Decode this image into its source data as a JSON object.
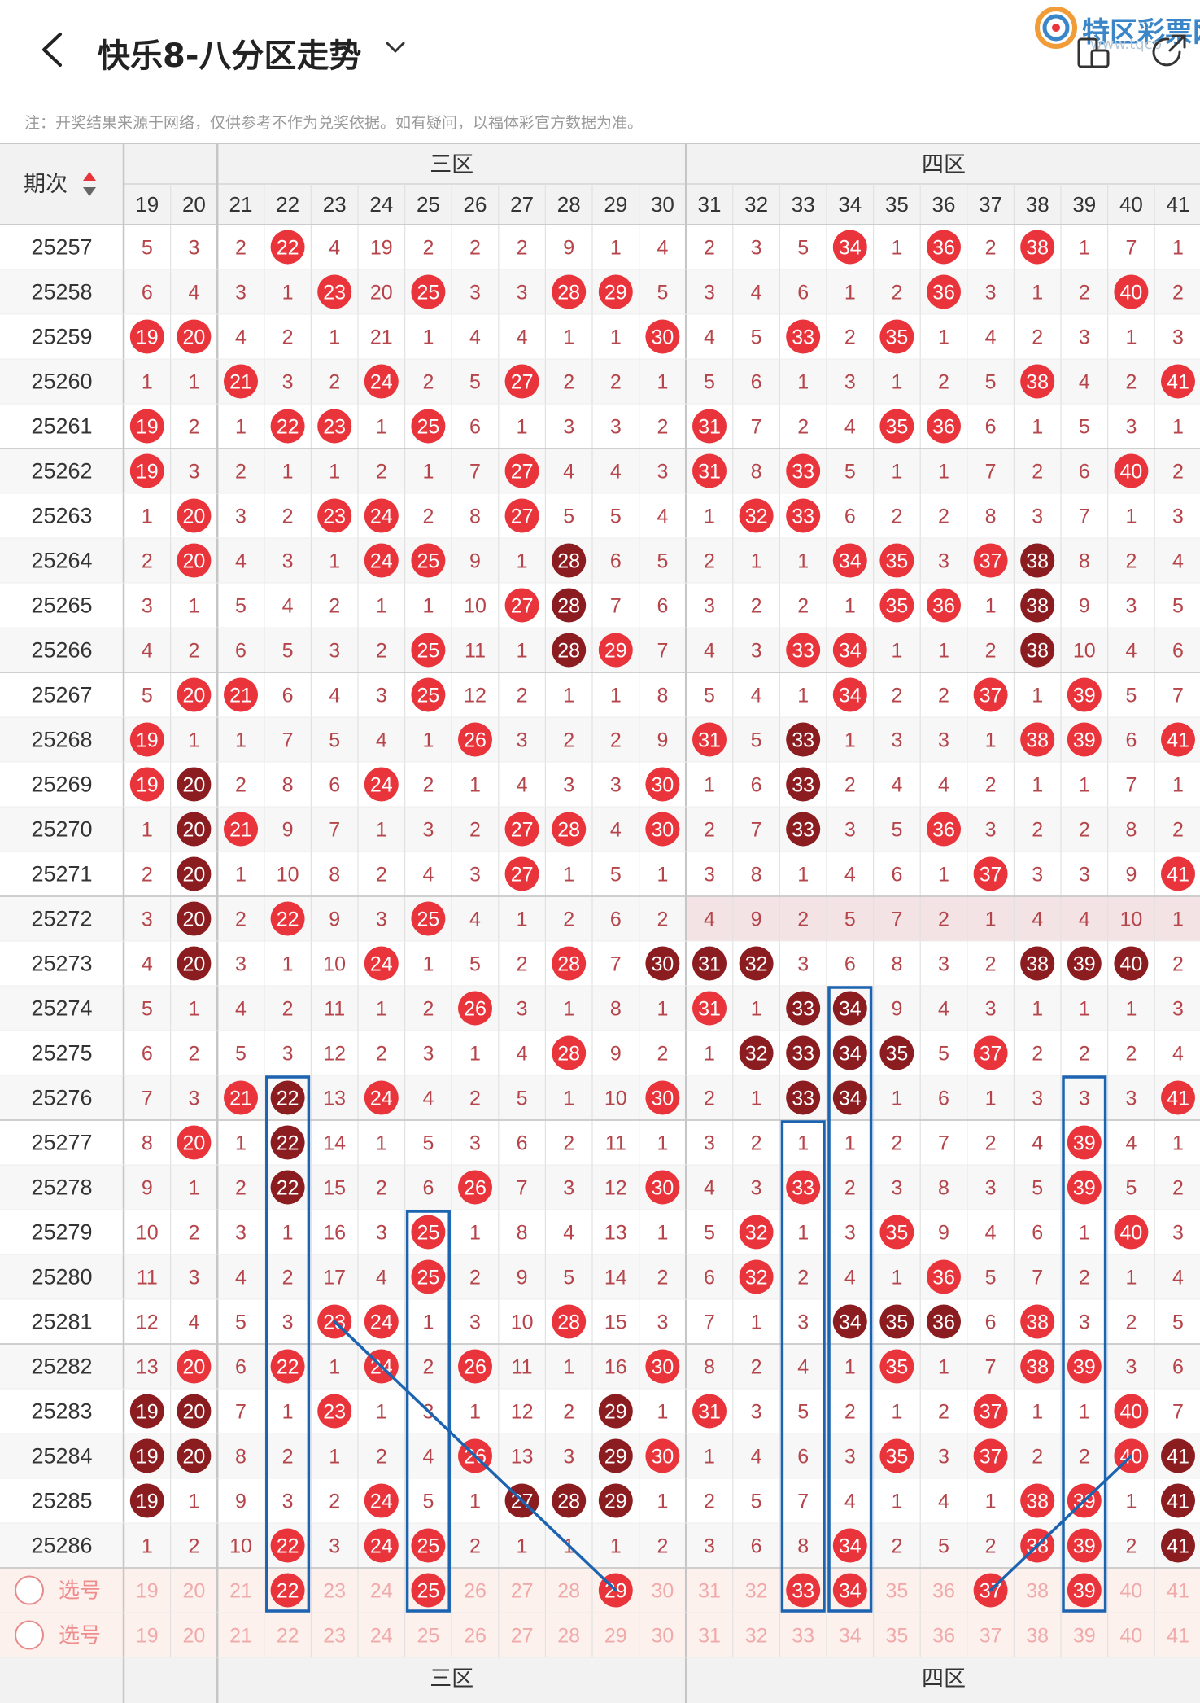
{
  "header": {
    "back_icon": "chevron-left-icon",
    "title": "快乐8-八分区走势",
    "dropdown_icon": "chevron-down-icon",
    "logo_text": "特区彩票网",
    "watermark": "www.tqcp",
    "toggle_icon": "device-toggle-icon",
    "share_icon": "share-icon"
  },
  "note": "注：开奖结果来源于网络，仅供参考不作为兑奖依据。如有疑问，以福体彩官方数据为准。",
  "table": {
    "period_header": "期次",
    "sort_icon": "sort-icon",
    "zone_labels": [
      "三区",
      "四区"
    ],
    "columns": [
      19,
      20,
      21,
      22,
      23,
      24,
      25,
      26,
      27,
      28,
      29,
      30,
      31,
      32,
      33,
      34,
      35,
      36,
      37,
      38,
      39,
      40,
      41
    ],
    "pick_label": "选号",
    "pick_rows": [
      {
        "label": "选号",
        "selected": [
          22,
          25,
          29,
          33,
          34,
          37,
          39
        ]
      },
      {
        "label": "选号",
        "selected": []
      }
    ],
    "colors": {
      "hit": "#e8343a",
      "hit_dark": "#8b1c20",
      "miss": "#b5454a",
      "pick_text": "#f0aaaa",
      "pick_bg": "#fdf1ee",
      "line": "#1c63b0"
    },
    "rows": [
      {
        "period": "25257",
        "cells": [
          "5",
          "3",
          "2",
          "22",
          "4",
          "19",
          "2",
          "2",
          "2",
          "9",
          "1",
          "4",
          "2",
          "3",
          "5",
          "34",
          "1",
          "36",
          "2",
          "38",
          "1",
          "7",
          "1"
        ]
      },
      {
        "period": "25258",
        "cells": [
          "6",
          "4",
          "3",
          "1",
          "23",
          "20",
          "25",
          "3",
          "3",
          "28",
          "29",
          "5",
          "3",
          "4",
          "6",
          "1",
          "2",
          "36",
          "3",
          "1",
          "2",
          "40",
          "2"
        ]
      },
      {
        "period": "25259",
        "cells": [
          "19",
          "20",
          "4",
          "2",
          "1",
          "21",
          "1",
          "4",
          "4",
          "1",
          "1",
          "30",
          "4",
          "5",
          "33",
          "2",
          "35",
          "1",
          "4",
          "2",
          "3",
          "1",
          "3"
        ]
      },
      {
        "period": "25260",
        "cells": [
          "1",
          "1",
          "21",
          "3",
          "2",
          "24",
          "2",
          "5",
          "27",
          "2",
          "2",
          "1",
          "5",
          "6",
          "1",
          "3",
          "1",
          "2",
          "5",
          "38",
          "4",
          "2",
          "41"
        ]
      },
      {
        "period": "25261",
        "cells": [
          "19",
          "2",
          "1",
          "22",
          "23",
          "1",
          "25",
          "6",
          "1",
          "3",
          "3",
          "2",
          "31",
          "7",
          "2",
          "4",
          "35",
          "36",
          "6",
          "1",
          "5",
          "3",
          "1"
        ]
      },
      {
        "period": "25262",
        "cells": [
          "19",
          "3",
          "2",
          "1",
          "1",
          "2",
          "1",
          "7",
          "27",
          "4",
          "4",
          "3",
          "31",
          "8",
          "33",
          "5",
          "1",
          "1",
          "7",
          "2",
          "6",
          "40",
          "2"
        ]
      },
      {
        "period": "25263",
        "cells": [
          "1",
          "20",
          "3",
          "2",
          "23",
          "24",
          "2",
          "8",
          "27",
          "5",
          "5",
          "4",
          "1",
          "32",
          "33",
          "6",
          "2",
          "2",
          "8",
          "3",
          "7",
          "1",
          "3"
        ]
      },
      {
        "period": "25264",
        "cells": [
          "2",
          "20",
          "4",
          "3",
          "1",
          "24",
          "25",
          "9",
          "1",
          "28",
          "6",
          "5",
          "2",
          "1",
          "1",
          "34",
          "35",
          "3",
          "37",
          "38",
          "8",
          "2",
          "4"
        ],
        "dark": [
          28,
          38
        ]
      },
      {
        "period": "25265",
        "cells": [
          "3",
          "1",
          "5",
          "4",
          "2",
          "1",
          "1",
          "10",
          "27",
          "28",
          "7",
          "6",
          "3",
          "2",
          "2",
          "1",
          "35",
          "36",
          "1",
          "38",
          "9",
          "3",
          "5"
        ],
        "dark": [
          28,
          38
        ]
      },
      {
        "period": "25266",
        "cells": [
          "4",
          "2",
          "6",
          "5",
          "3",
          "2",
          "25",
          "11",
          "1",
          "28",
          "29",
          "7",
          "4",
          "3",
          "33",
          "34",
          "1",
          "1",
          "2",
          "38",
          "10",
          "4",
          "6"
        ],
        "dark": [
          28,
          38
        ]
      },
      {
        "period": "25267",
        "cells": [
          "5",
          "20",
          "21",
          "6",
          "4",
          "3",
          "25",
          "12",
          "2",
          "1",
          "1",
          "8",
          "5",
          "4",
          "1",
          "34",
          "2",
          "2",
          "37",
          "1",
          "39",
          "5",
          "7"
        ]
      },
      {
        "period": "25268",
        "cells": [
          "19",
          "1",
          "1",
          "7",
          "5",
          "4",
          "1",
          "26",
          "3",
          "2",
          "2",
          "9",
          "31",
          "5",
          "33",
          "1",
          "3",
          "3",
          "1",
          "38",
          "39",
          "6",
          "41"
        ],
        "dark": [
          33
        ]
      },
      {
        "period": "25269",
        "cells": [
          "19",
          "20",
          "2",
          "8",
          "6",
          "24",
          "2",
          "1",
          "4",
          "3",
          "3",
          "30",
          "1",
          "6",
          "33",
          "2",
          "4",
          "4",
          "2",
          "1",
          "1",
          "7",
          "1"
        ],
        "dark": [
          20,
          33
        ]
      },
      {
        "period": "25270",
        "cells": [
          "1",
          "20",
          "21",
          "9",
          "7",
          "1",
          "3",
          "2",
          "27",
          "28",
          "4",
          "30",
          "2",
          "7",
          "33",
          "3",
          "5",
          "36",
          "3",
          "2",
          "2",
          "8",
          "2"
        ],
        "dark": [
          20,
          33
        ]
      },
      {
        "period": "25271",
        "cells": [
          "2",
          "20",
          "1",
          "10",
          "8",
          "2",
          "4",
          "3",
          "27",
          "1",
          "5",
          "1",
          "3",
          "8",
          "1",
          "4",
          "6",
          "1",
          "37",
          "3",
          "3",
          "9",
          "41"
        ],
        "dark": [
          20
        ]
      },
      {
        "period": "25272",
        "cells": [
          "3",
          "20",
          "2",
          "22",
          "9",
          "3",
          "25",
          "4",
          "1",
          "2",
          "6",
          "2",
          "4",
          "9",
          "2",
          "5",
          "7",
          "2",
          "1",
          "4",
          "4",
          "10",
          "1"
        ],
        "dark": [
          20
        ],
        "shade_zone4": true
      },
      {
        "period": "25273",
        "cells": [
          "4",
          "20",
          "3",
          "1",
          "10",
          "24",
          "1",
          "5",
          "2",
          "28",
          "7",
          "30",
          "31",
          "32",
          "3",
          "6",
          "8",
          "3",
          "2",
          "38",
          "39",
          "40",
          "2"
        ],
        "dark": [
          20,
          30,
          31,
          32,
          38,
          39,
          40
        ]
      },
      {
        "period": "25274",
        "cells": [
          "5",
          "1",
          "4",
          "2",
          "11",
          "1",
          "2",
          "26",
          "3",
          "1",
          "8",
          "1",
          "31",
          "1",
          "33",
          "34",
          "9",
          "4",
          "3",
          "1",
          "1",
          "1",
          "3"
        ],
        "dark": [
          33,
          34
        ]
      },
      {
        "period": "25275",
        "cells": [
          "6",
          "2",
          "5",
          "3",
          "12",
          "2",
          "3",
          "1",
          "4",
          "28",
          "9",
          "2",
          "1",
          "32",
          "33",
          "34",
          "35",
          "5",
          "37",
          "2",
          "2",
          "2",
          "4"
        ],
        "dark": [
          32,
          33,
          34,
          35
        ]
      },
      {
        "period": "25276",
        "cells": [
          "7",
          "3",
          "21",
          "22",
          "13",
          "24",
          "4",
          "2",
          "5",
          "1",
          "10",
          "30",
          "2",
          "1",
          "33",
          "34",
          "1",
          "6",
          "1",
          "3",
          "3",
          "3",
          "41"
        ],
        "dark": [
          22,
          33,
          34
        ]
      },
      {
        "period": "25277",
        "cells": [
          "8",
          "20",
          "1",
          "22",
          "14",
          "1",
          "5",
          "3",
          "6",
          "2",
          "11",
          "1",
          "3",
          "2",
          "1",
          "1",
          "2",
          "7",
          "2",
          "4",
          "39",
          "4",
          "1"
        ],
        "dark": [
          22
        ]
      },
      {
        "period": "25278",
        "cells": [
          "9",
          "1",
          "2",
          "22",
          "15",
          "2",
          "6",
          "26",
          "7",
          "3",
          "12",
          "30",
          "4",
          "3",
          "33",
          "2",
          "3",
          "8",
          "3",
          "5",
          "39",
          "5",
          "2"
        ],
        "dark": [
          22
        ]
      },
      {
        "period": "25279",
        "cells": [
          "10",
          "2",
          "3",
          "1",
          "16",
          "3",
          "25",
          "1",
          "8",
          "4",
          "13",
          "1",
          "5",
          "32",
          "1",
          "3",
          "35",
          "9",
          "4",
          "6",
          "1",
          "40",
          "3"
        ]
      },
      {
        "period": "25280",
        "cells": [
          "11",
          "3",
          "4",
          "2",
          "17",
          "4",
          "25",
          "2",
          "9",
          "5",
          "14",
          "2",
          "6",
          "32",
          "2",
          "4",
          "1",
          "36",
          "5",
          "7",
          "2",
          "1",
          "4"
        ]
      },
      {
        "period": "25281",
        "cells": [
          "12",
          "4",
          "5",
          "3",
          "23",
          "24",
          "1",
          "3",
          "10",
          "28",
          "15",
          "3",
          "7",
          "1",
          "3",
          "34",
          "35",
          "36",
          "6",
          "38",
          "3",
          "2",
          "5"
        ],
        "dark": [
          34,
          35,
          36
        ]
      },
      {
        "period": "25282",
        "cells": [
          "13",
          "20",
          "6",
          "22",
          "1",
          "24",
          "2",
          "26",
          "11",
          "1",
          "16",
          "30",
          "8",
          "2",
          "4",
          "1",
          "35",
          "1",
          "7",
          "38",
          "39",
          "3",
          "6"
        ]
      },
      {
        "period": "25283",
        "cells": [
          "19",
          "20",
          "7",
          "1",
          "23",
          "1",
          "3",
          "1",
          "12",
          "2",
          "29",
          "1",
          "31",
          "3",
          "5",
          "2",
          "1",
          "2",
          "37",
          "1",
          "1",
          "40",
          "7"
        ],
        "dark": [
          19,
          20,
          29
        ]
      },
      {
        "period": "25284",
        "cells": [
          "19",
          "20",
          "8",
          "2",
          "1",
          "2",
          "4",
          "26",
          "13",
          "3",
          "29",
          "30",
          "1",
          "4",
          "6",
          "3",
          "35",
          "3",
          "37",
          "2",
          "2",
          "40",
          "41"
        ],
        "dark": [
          19,
          20,
          29,
          41
        ]
      },
      {
        "period": "25285",
        "cells": [
          "19",
          "1",
          "9",
          "3",
          "2",
          "24",
          "5",
          "1",
          "27",
          "28",
          "29",
          "1",
          "2",
          "5",
          "7",
          "4",
          "1",
          "4",
          "1",
          "38",
          "39",
          "1",
          "41"
        ],
        "dark": [
          19,
          27,
          28,
          29,
          41
        ]
      },
      {
        "period": "25286",
        "cells": [
          "1",
          "2",
          "10",
          "22",
          "3",
          "24",
          "25",
          "2",
          "1",
          "1",
          "1",
          "2",
          "3",
          "6",
          "8",
          "34",
          "2",
          "5",
          "2",
          "38",
          "39",
          "2",
          "41"
        ],
        "dark": [
          41
        ]
      }
    ]
  }
}
